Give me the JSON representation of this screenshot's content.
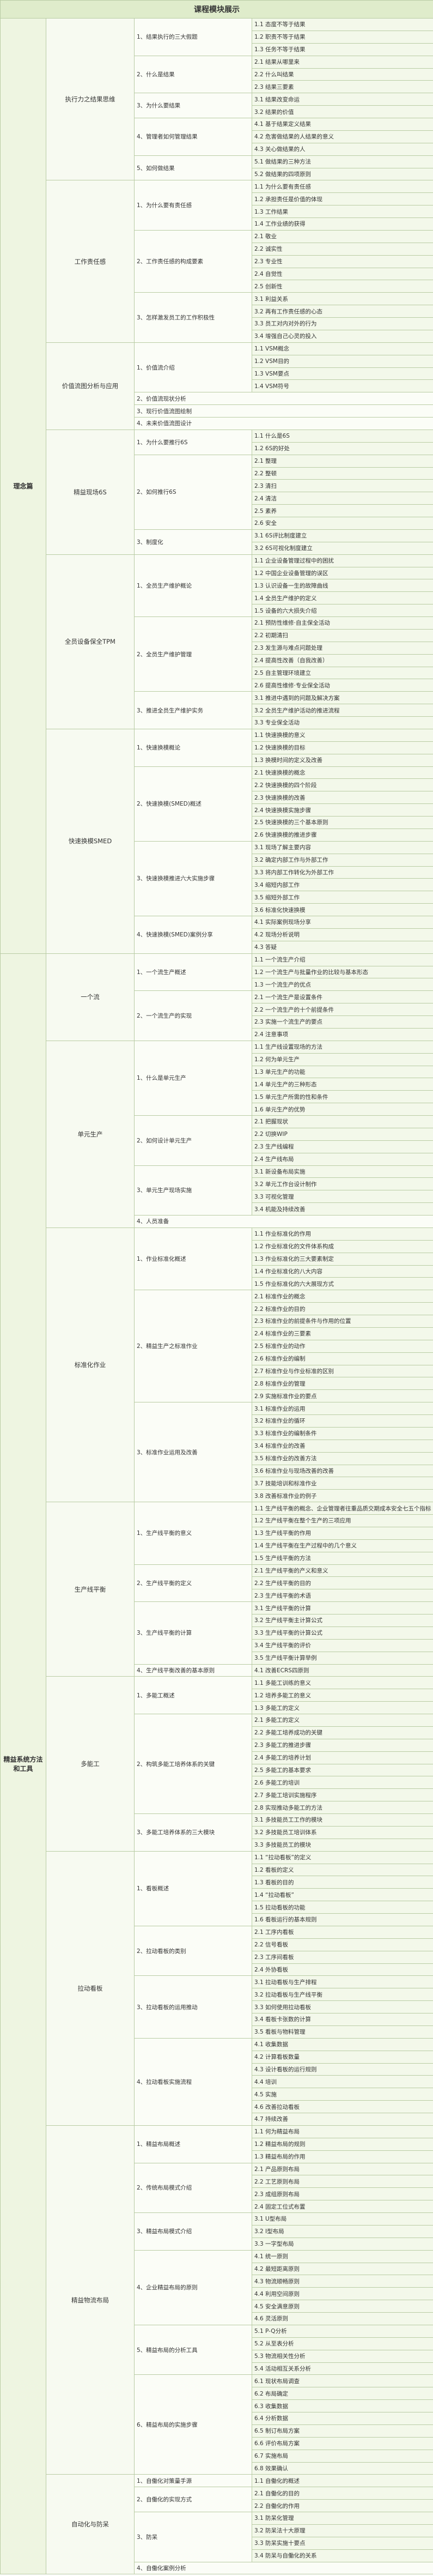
{
  "title": "课程模块展示",
  "sections": [
    {
      "name": "理念篇",
      "modules": [
        {
          "name": "执行力之结果思维",
          "topics": [
            {
              "name": "1、结果执行的三大假题",
              "items": [
                "1.1 态度不等于结果",
                "1.2 职责不等于结果",
                "1.3 任务不等于结果"
              ]
            },
            {
              "name": "2、什么是结果",
              "items": [
                "2.1 结果从哪里来",
                "2.2 什么叫结果",
                "2.3 结果三要素"
              ]
            },
            {
              "name": "3、为什么要结果",
              "items": [
                "3.1 结果改变命运",
                "3.2 结果的价值"
              ]
            },
            {
              "name": "4、管理者如何管理结果",
              "items": [
                "4.1 基于结果定义结果",
                "4.2 危害做结果的人结果的意义",
                "4.3 关心做结果的人"
              ]
            },
            {
              "name": "5、如何做结果",
              "items": [
                "5.1 做结果的三种方法",
                "5.2 做结果的四项原则"
              ]
            }
          ]
        },
        {
          "name": "工作责任感",
          "topics": [
            {
              "name": "1、为什么要有责任感",
              "items": [
                "1.1 为什么要有责任感",
                "1.2 承担责任是价值的体现",
                "1.3 工作结果",
                "1.4 工作业绩的获得"
              ]
            },
            {
              "name": "2、工作责任感的构成要素",
              "items": [
                "2.1 敬业",
                "2.2 诚实性",
                "2.3 专业性",
                "2.4 自觉性",
                "2.5 创新性"
              ]
            },
            {
              "name": "3、怎样激发员工的工作积极性",
              "items": [
                "3.1 利益关系",
                "3.2 再有工作责任感的心态",
                "3.3 员工对内对外的行为",
                "3.4 增强自己心灵的投入"
              ]
            }
          ]
        },
        {
          "name": "价值流图分析与应用",
          "topics": [
            {
              "name": "1、价值流介绍",
              "items": [
                "1.1 VSM概念",
                "1.2 VSM目的",
                "1.3 VSM要点",
                "1.4 VSM符号"
              ]
            },
            {
              "name": "2、价值流现状分析",
              "items": []
            },
            {
              "name": "3、现行价值流图绘制",
              "items": []
            },
            {
              "name": "4、未来价值流图设计",
              "items": []
            }
          ]
        },
        {
          "name": "精益现场6S",
          "topics": [
            {
              "name": "1、为什么要推行6S",
              "items": [
                "1.1 什么是6S",
                "1.2 6S的好处"
              ]
            },
            {
              "name": "2、如何推行6S",
              "items": [
                "2.1 整理",
                "2.2 整顿",
                "2.3 清扫",
                "2.4 清洁",
                "2.5 素养",
                "2.6 安全"
              ]
            },
            {
              "name": "3、制度化",
              "items": [
                "3.1 6S评比制度建立",
                "3.2 6S可视化制度建立"
              ]
            }
          ]
        },
        {
          "name": "全员设备保全TPM",
          "topics": [
            {
              "name": "1、全员生产维护概论",
              "items": [
                "1.1 企业设备管理过程中的困扰",
                "1.2 中国企业设备管理的误区",
                "1.3 认识设备一生的故障曲线",
                "1.4 全员生产维护的定义",
                "1.5 设备的六大损失介绍"
              ]
            },
            {
              "name": "2、全员生产维护管理",
              "items": [
                "2.1 预防性维修·自主保全活动",
                "2.2 初期清扫",
                "2.3 发生源与难点问题处理",
                "2.4 提高性改善（自我改善）",
                "2.5 自主管理环境建立",
                "2.6 提高性维修·专业保全活动"
              ]
            },
            {
              "name": "3、推进全员生产维护实务",
              "items": [
                "3.1 推进中遇到的问题及解决方案",
                "3.2 全员生产维护活动的推进流程",
                "3.3 专业保全活动"
              ]
            }
          ]
        },
        {
          "name": "快速换模SMED",
          "topics": [
            {
              "name": "1、快速换模概论",
              "items": [
                "1.1 快速换模的意义",
                "1.2 快速换模的目标",
                "1.3 换模时间的定义及改善"
              ]
            },
            {
              "name": "2、快速换模(SMED)概述",
              "items": [
                "2.1 快速换模的概念",
                "2.2 快速换模的四个阶段",
                "2.3 快速换模的改善",
                "2.4 快速换模实施步骤",
                "2.5 快速换模的三个基本原则",
                "2.6 快速换模的推进步骤"
              ]
            },
            {
              "name": "3、快速换模推进六大实施步骤",
              "items": [
                "3.1 现场了解主要内容",
                "3.2 确定内部工作与外部工作",
                "3.3 将内部工作转化为外部工作",
                "3.4 缩短内部工作",
                "3.5 缩短外部工作",
                "3.6 标准化快速换模"
              ]
            },
            {
              "name": "4、快速换模(SMED)案例分享",
              "items": [
                "4.1 实际案例现场分享",
                "4.2 现场分析说明",
                "4.3 答疑"
              ]
            }
          ]
        }
      ]
    },
    {
      "name": "精益系统方法和工具",
      "modules": [
        {
          "name": "一个流",
          "topics": [
            {
              "name": "1、一个流生产概述",
              "items": [
                "1.1 一个流生产介绍",
                "1.2 一个流生产与批量作业的比较与基本形态",
                "1.3 一个流生产的优点"
              ]
            },
            {
              "name": "2、一个流生产的实现",
              "items": [
                "2.1 一个流生产是设置条件",
                "2.2 一个流生产的十个前提条件",
                "2.3 实施一个流生产的要点",
                "2.4 注意事项"
              ]
            }
          ]
        },
        {
          "name": "单元生产",
          "topics": [
            {
              "name": "1、什么是单元生产",
              "items": [
                "1.1 生产线设置现场的方法",
                "1.2 何为单元生产",
                "1.3 单元生产的功能",
                "1.4 单元生产的三种形态",
                "1.5 单元生产所需的性和条件",
                "1.6 单元生产的优势"
              ]
            },
            {
              "name": "2、如何设计单元生产",
              "items": [
                "2.1 把握现状",
                "2.2 切换WIP",
                "2.3 生产线编程",
                "2.4 生产线布局"
              ]
            },
            {
              "name": "3、单元生产现场实施",
              "items": [
                "3.1 新设备布局实施",
                "3.2 单元工作台设计制作",
                "3.3 可视化管理",
                "3.4 机能及持续改善"
              ]
            },
            {
              "name": "4、人员准备",
              "items": []
            }
          ]
        },
        {
          "name": "标准化作业",
          "topics": [
            {
              "name": "1、作业标准化概述",
              "items": [
                "1.1 作业标准化的作用",
                "1.2 作业标准化的文件体系构成",
                "1.3 作业标准化的三大要素制定",
                "1.4 作业标准化的八大内容",
                "1.5 作业标准化的六大展现方式"
              ]
            },
            {
              "name": "2、精益生产之标准作业",
              "items": [
                "2.1 标准作业的概念",
                "2.2 标准作业的目的",
                "2.3 标准作业的前提条件与作用的位置",
                "2.4 标准作业的三要素",
                "2.5 标准作业的动作",
                "2.6 标准作业的编制",
                "2.7 标准作业与作业标准的区别",
                "2.8 标准作业的管理",
                "2.9 实施标准作业的要点"
              ]
            },
            {
              "name": "3、标准作业运用及改善",
              "items": [
                "3.1 标准作业的运用",
                "3.2 标准作业的循环",
                "3.3 标准作业的编制条件",
                "3.4 标准作业的改善",
                "3.5 标准作业的改善方法",
                "3.6 标准作业与现场改善的改善",
                "3.7 技能培训和标准作业",
                "3.8 改善标准作业的例子"
              ]
            }
          ]
        },
        {
          "name": "生产线平衡",
          "topics": [
            {
              "name": "1、生产线平衡的意义",
              "items": [
                "1.1 生产线平衡的概念、企业管理者往重品质交期成本安全七五个指标",
                "1.2 生产线平衡在整个生产的三项应用",
                "1.3 生产线平衡的作用",
                "1.4 生产线平衡在生产过程中的几个意义",
                "1.5 生产线平衡的方法"
              ]
            },
            {
              "name": "2、生产线平衡的定义",
              "items": [
                "2.1 生产线平衡的产义和意义",
                "2.2 生产线平衡的目的",
                "2.3 生产线平衡的术语"
              ]
            },
            {
              "name": "3、生产线平衡的计算",
              "items": [
                "3.1 生产线平衡的计算",
                "3.2 生产线平衡主计算公式",
                "3.3 生产线平衡的计算公式",
                "3.4 生产线平衡的评价",
                "3.5 生产线平衡计算举例"
              ]
            },
            {
              "name": "4、生产线平衡改善的基本原则",
              "items": [
                "4.1 改善ECRS四原则"
              ]
            }
          ]
        },
        {
          "name": "多能工",
          "topics": [
            {
              "name": "1、多能工概述",
              "items": [
                "1.1 多能工训练的意义",
                "1.2 培养多能工的意义",
                "1.3 多能工的定义"
              ]
            },
            {
              "name": "2、构筑多能工培养体系的关键",
              "items": [
                "2.1 多能工的定义",
                "2.2 多能工培养成功的关键",
                "2.3 多能工的推进步骤",
                "2.4 多能工的培养计划",
                "2.5 多能工的基本要求",
                "2.6 多能工的培训",
                "2.7 多能工培训实施程序",
                "2.8 实现推动多能工的方法"
              ]
            },
            {
              "name": "3、多能工培养体系的三大模块",
              "items": [
                "3.1 多技能员工工作的模块",
                "3.2 多技能员工培训体系",
                "3.3 多技能员工的模块"
              ]
            }
          ]
        },
        {
          "name": "拉动看板",
          "topics": [
            {
              "name": "1、看板概述",
              "items": [
                "1.1 “拉动看板”的定义",
                "1.2 看板的定义",
                "1.3 看板的目的",
                "1.4 “拉动看板”",
                "1.5 拉动看板的功能",
                "1.6 看板运行的基本规则"
              ]
            },
            {
              "name": "2、拉动看板的类别",
              "items": [
                "2.1 工序内看板",
                "2.2 信号看板",
                "2.3 工序间看板",
                "2.4 外协看板"
              ]
            },
            {
              "name": "3、拉动看板的运用推动",
              "items": [
                "3.1 拉动看板与生产排程",
                "3.2 拉动看板与生产线平衡",
                "3.3 如何使用拉动看板",
                "3.4 看板卡张数的计算",
                "3.5 看板与物料管理"
              ]
            },
            {
              "name": "4、拉动看板实施流程",
              "items": [
                "4.1 收集数据",
                "4.2 计算看板数量",
                "4.3 设计看板的运行规则",
                "4.4 培训",
                "4.5 实施",
                "4.6 改善拉动看板",
                "4.7 持续改善"
              ]
            }
          ]
        },
        {
          "name": "精益物流布局",
          "topics": [
            {
              "name": "1、精益布局概述",
              "items": [
                "1.1 何为精益布局",
                "1.2 精益布局的规则",
                "1.3 精益布局的作用"
              ]
            },
            {
              "name": "2、传统布局模式介绍",
              "items": [
                "2.1 产品原则布局",
                "2.2 工艺原则布局",
                "2.3 成组原则布局",
                "2.4 固定工位式布置"
              ]
            },
            {
              "name": "3、精益布局模式介绍",
              "items": [
                "3.1 U型布局",
                "3.2 I型布局",
                "3.3 一字型布局"
              ]
            },
            {
              "name": "4、企业精益布局的原则",
              "items": [
                "4.1 统一原则",
                "4.2 最短距离原则",
                "4.3 物流顺畅原则",
                "4.4 利用空间原则",
                "4.5 安全满意原则",
                "4.6 灵活原则"
              ]
            },
            {
              "name": "5、精益布局的分析工具",
              "items": [
                "5.1 P-Q分析",
                "5.2 从至表分析",
                "5.3 物流相关性分析",
                "5.4 活动相互关系分析"
              ]
            },
            {
              "name": "6、精益布局的实施步骤",
              "items": [
                "6.1 现状布局调查",
                "6.2 布局确定",
                "6.3 收集数据",
                "6.4 分析数据",
                "6.5 制订布局方案",
                "6.6 评价布局方案",
                "6.7 实施布局",
                "6.8 效果确认"
              ]
            }
          ]
        },
        {
          "name": "自动化与防呆",
          "topics": [
            {
              "name": "1、自働化对策量手源",
              "items": [
                "1.1 自働化的概述"
              ]
            },
            {
              "name": "2、自働化的实现方式",
              "items": [
                "2.1 自働化的目的",
                "2.2 自働化的作用"
              ]
            },
            {
              "name": "3、防呆",
              "items": [
                "3.1 防呆化管理",
                "3.2 防呆法十大原理",
                "3.3 防呆实施十要点",
                "3.4 防呆与自働化的关系"
              ]
            },
            {
              "name": "4、自働化案例分析",
              "items": []
            }
          ]
        }
      ]
    }
  ]
}
